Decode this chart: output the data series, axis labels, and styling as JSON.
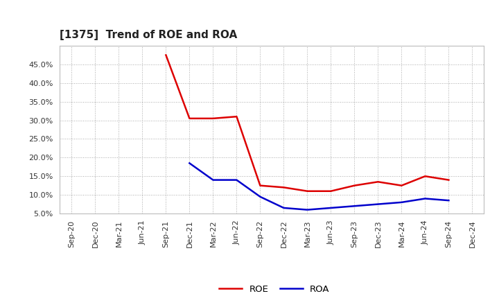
{
  "title": "[1375]  Trend of ROE and ROA",
  "title_fontsize": 11,
  "background_color": "#ffffff",
  "plot_bg_color": "#ffffff",
  "grid_color": "#aaaaaa",
  "x_labels": [
    "Sep-20",
    "Dec-20",
    "Mar-21",
    "Jun-21",
    "Sep-21",
    "Dec-21",
    "Mar-22",
    "Jun-22",
    "Sep-22",
    "Dec-22",
    "Mar-23",
    "Jun-23",
    "Sep-23",
    "Dec-23",
    "Mar-24",
    "Jun-24",
    "Sep-24",
    "Dec-24"
  ],
  "roe_values": [
    null,
    null,
    null,
    null,
    47.5,
    30.5,
    30.5,
    31.0,
    12.5,
    12.0,
    11.0,
    11.0,
    12.5,
    13.5,
    12.5,
    15.0,
    14.0,
    null
  ],
  "roa_values": [
    null,
    null,
    null,
    null,
    null,
    18.5,
    14.0,
    14.0,
    9.5,
    6.5,
    6.0,
    6.5,
    7.0,
    7.5,
    8.0,
    9.0,
    8.5,
    null
  ],
  "roe_color": "#dd0000",
  "roa_color": "#0000cc",
  "ylim": [
    5.0,
    50.0
  ],
  "yticks": [
    5.0,
    10.0,
    15.0,
    20.0,
    25.0,
    30.0,
    35.0,
    40.0,
    45.0
  ],
  "line_width": 1.8,
  "legend_labels": [
    "ROE",
    "ROA"
  ]
}
